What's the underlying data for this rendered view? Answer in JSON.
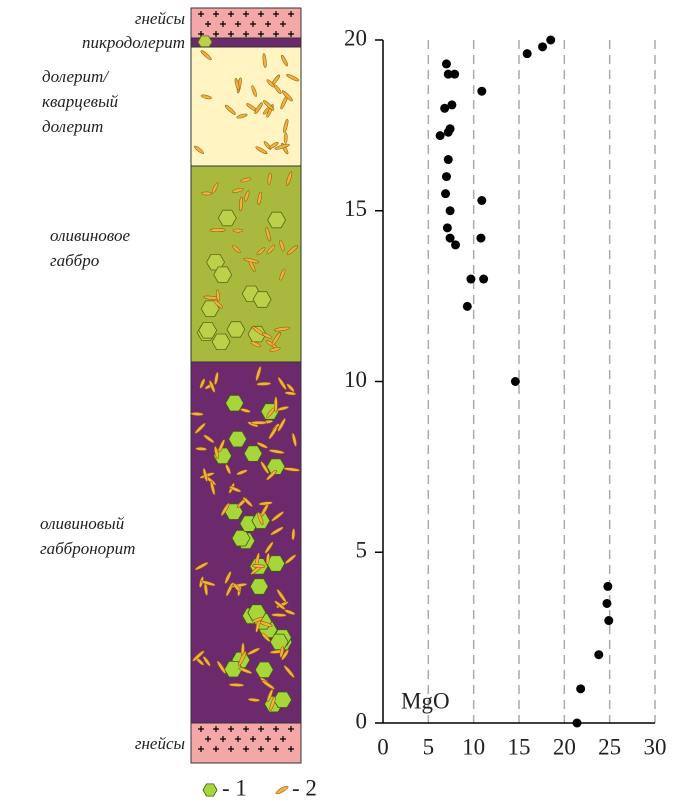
{
  "chart_data": {
    "type": "scatter",
    "x_label": "MgO",
    "xlim": [
      0,
      30
    ],
    "ylim": [
      0,
      20
    ],
    "xticks": [
      0,
      5,
      10,
      15,
      20,
      25,
      30
    ],
    "yticks": [
      0,
      5,
      10,
      15,
      20
    ],
    "grid": true,
    "series": [
      {
        "color": "#000000",
        "x": [
          15.9,
          17.6,
          18.5,
          7.0,
          7.2,
          7.9,
          10.9,
          6.8,
          7.6,
          7.4,
          6.3,
          7.2,
          7.2,
          7.0,
          6.9,
          7.4,
          10.9,
          7.1,
          7.4,
          8.0,
          10.8,
          9.7,
          11.1,
          9.3,
          14.6,
          24.8,
          24.7,
          24.9,
          23.8,
          21.8,
          21.4
        ],
        "values": [
          19.6,
          19.8,
          20.0,
          19.3,
          19.0,
          19.0,
          18.5,
          18.0,
          18.1,
          17.4,
          17.2,
          17.3,
          16.5,
          16.0,
          15.5,
          15.0,
          15.3,
          14.5,
          14.2,
          14.0,
          14.2,
          13.0,
          13.0,
          12.2,
          10.0,
          4.0,
          3.5,
          3.0,
          2.0,
          1.0,
          0.0
        ]
      }
    ]
  },
  "column": {
    "layers": [
      {
        "lines": [
          "гнейсы"
        ]
      },
      {
        "lines": [
          "пикродолерит"
        ]
      },
      {
        "lines": [
          "долерит/",
          "кварцевый",
          "долерит"
        ]
      },
      {
        "lines": [
          "оливиновое",
          "габбро"
        ]
      },
      {
        "lines": [
          "оливиновый",
          "габбронорит"
        ]
      },
      {
        "lines": [
          "гнейсы"
        ]
      }
    ]
  },
  "legend": {
    "items": [
      "- 1",
      "- 2"
    ]
  }
}
